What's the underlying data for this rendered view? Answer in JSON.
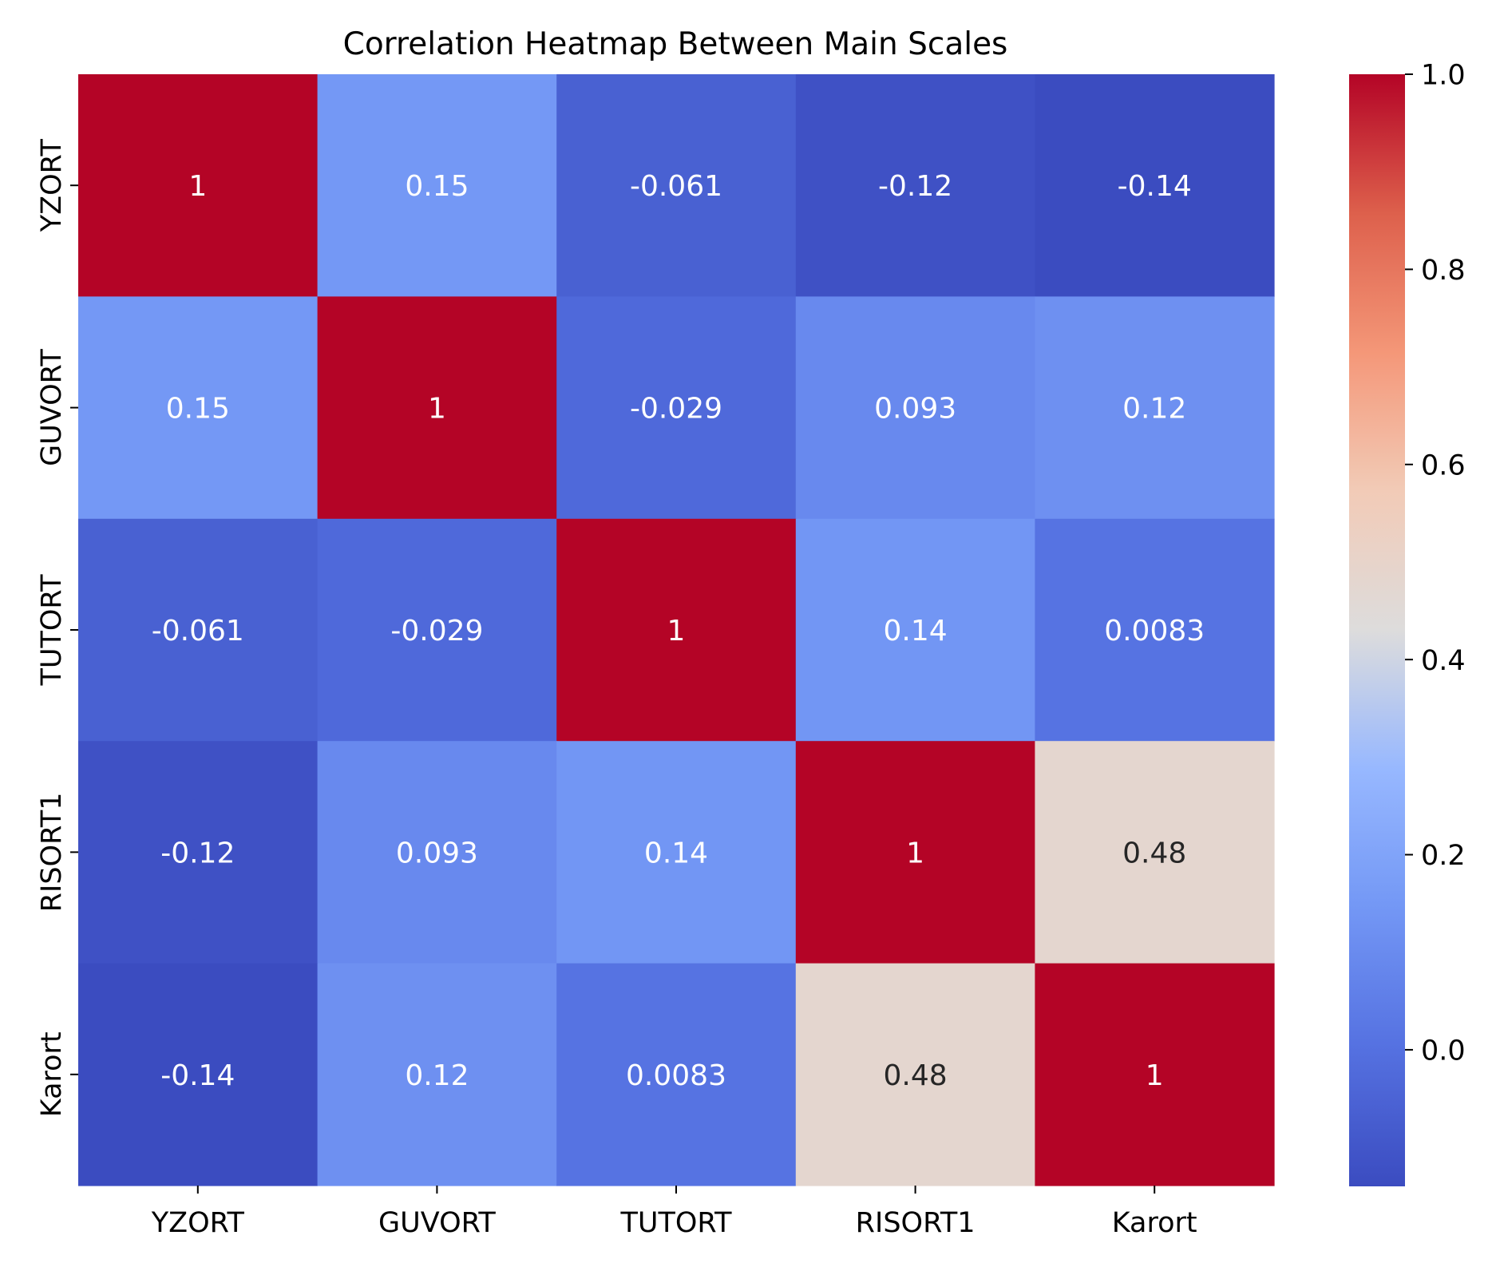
{
  "chart_data": {
    "type": "heatmap",
    "title": "Correlation Heatmap Between Main Scales",
    "xlabel": "",
    "ylabel": "",
    "x_categories": [
      "YZORT",
      "GUVORT",
      "TUTORT",
      "RISORT1",
      "Karort"
    ],
    "y_categories": [
      "YZORT",
      "GUVORT",
      "TUTORT",
      "RISORT1",
      "Karort"
    ],
    "values": [
      [
        1,
        0.15,
        -0.061,
        -0.12,
        -0.14
      ],
      [
        0.15,
        1,
        -0.029,
        0.093,
        0.12
      ],
      [
        -0.061,
        -0.029,
        1,
        0.14,
        0.0083
      ],
      [
        -0.12,
        0.093,
        0.14,
        1,
        0.48
      ],
      [
        -0.14,
        0.12,
        0.0083,
        0.48,
        1
      ]
    ],
    "annotations": [
      [
        "1",
        "0.15",
        "-0.061",
        "-0.12",
        "-0.14"
      ],
      [
        "0.15",
        "1",
        "-0.029",
        "0.093",
        "0.12"
      ],
      [
        "-0.061",
        "-0.029",
        "1",
        "0.14",
        "0.0083"
      ],
      [
        "-0.12",
        "0.093",
        "0.14",
        "1",
        "0.48"
      ],
      [
        "-0.14",
        "0.12",
        "0.0083",
        "0.48",
        "1"
      ]
    ],
    "colormap": "coolwarm",
    "vmin": -0.14,
    "vmax": 1,
    "colorbar": {
      "ticks": [
        0.0,
        0.2,
        0.4,
        0.6,
        0.8,
        1.0
      ],
      "tick_labels": [
        "0.0",
        "0.2",
        "0.4",
        "0.6",
        "0.8",
        "1.0"
      ]
    },
    "colors": {
      "low": "#3b4cc0",
      "mid": "#dddcdc",
      "high": "#b40426"
    }
  }
}
